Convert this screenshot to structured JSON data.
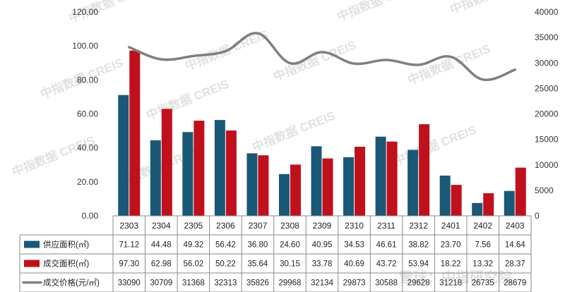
{
  "chart_data": {
    "type": "bar",
    "categories": [
      "2303",
      "2304",
      "2305",
      "2306",
      "2307",
      "2308",
      "2309",
      "2310",
      "2311",
      "2312",
      "2401",
      "2402",
      "2403"
    ],
    "series": [
      {
        "name": "供应面积(㎡)",
        "kind": "bar",
        "axis": "left",
        "color": "#1b5878",
        "values": [
          71.12,
          44.48,
          49.32,
          56.42,
          36.8,
          24.6,
          40.95,
          34.53,
          46.61,
          38.82,
          23.7,
          7.56,
          14.64
        ],
        "labels": [
          "71.12",
          "44.48",
          "49.32",
          "56.42",
          "36.80",
          "24.60",
          "40.95",
          "34.53",
          "46.61",
          "38.82",
          "23.70",
          "7.56",
          "14.64"
        ]
      },
      {
        "name": "成交面积(㎡)",
        "kind": "bar",
        "axis": "left",
        "color": "#c0101c",
        "values": [
          97.3,
          62.98,
          56.02,
          50.22,
          35.64,
          30.15,
          33.78,
          40.69,
          43.72,
          53.94,
          18.22,
          13.32,
          28.37
        ],
        "labels": [
          "97.30",
          "62.98",
          "56.02",
          "50.22",
          "35.64",
          "30.15",
          "33.78",
          "40.69",
          "43.72",
          "53.94",
          "18.22",
          "13.32",
          "28.37"
        ]
      },
      {
        "name": "成交价格(元/㎡)",
        "kind": "line",
        "axis": "right",
        "color": "#7f7f7f",
        "values": [
          33090,
          30709,
          31368,
          32313,
          35826,
          29968,
          32134,
          29873,
          30588,
          29628,
          31218,
          26735,
          28679
        ],
        "labels": [
          "33090",
          "30709",
          "31368",
          "32313",
          "35826",
          "29968",
          "32134",
          "29873",
          "30588",
          "29628",
          "31218",
          "26735",
          "28679"
        ]
      }
    ],
    "y_left": {
      "ticks": [
        "0.00",
        "20.00",
        "40.00",
        "60.00",
        "80.00",
        "100.00",
        "120.00"
      ],
      "ylim": [
        0,
        120
      ]
    },
    "y_right": {
      "ticks": [
        "0",
        "5000",
        "10000",
        "15000",
        "20000",
        "25000",
        "30000",
        "35000",
        "40000"
      ],
      "ylim": [
        0,
        40000
      ]
    },
    "legend": "data table below chart",
    "grid": false,
    "watermarks": [
      "中指数据 CREIS",
      "中指数据 CREIS",
      "中指数据 CREIS",
      "中指数据 CREIS",
      "中指数据 CREIS",
      "中指数据 CREIS",
      "中指数据 CREIS",
      "中指数据 CREIS",
      "中指数据 CREIS",
      "中指数据 CREIS",
      "中指数据 CREIS",
      "中指数据 CREIS",
      "雪球：中指研究院"
    ]
  }
}
